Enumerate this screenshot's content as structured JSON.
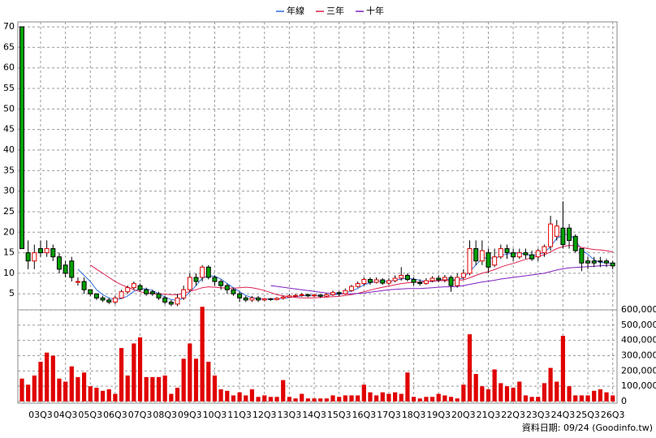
{
  "chart_data": {
    "type": "candlestick",
    "legend_position": "top",
    "date_note": "資料日期: 09/24 (Goodinfo.tw)",
    "categories": [
      null,
      null,
      null,
      "03Q3",
      null,
      null,
      null,
      "04Q3",
      null,
      null,
      null,
      "05Q3",
      null,
      null,
      null,
      "06Q3",
      null,
      null,
      null,
      "07Q3",
      null,
      null,
      null,
      "08Q3",
      null,
      null,
      null,
      "09Q3",
      null,
      null,
      null,
      "10Q3",
      null,
      null,
      null,
      "11Q3",
      null,
      null,
      null,
      "12Q3",
      null,
      null,
      null,
      "13Q3",
      null,
      null,
      null,
      "14Q3",
      null,
      null,
      null,
      "15Q3",
      null,
      null,
      null,
      "16Q3",
      null,
      null,
      null,
      "17Q3",
      null,
      null,
      null,
      "18Q3",
      null,
      null,
      null,
      "19Q3",
      null,
      null,
      null,
      "20Q3",
      null,
      null,
      null,
      "21Q3",
      null,
      null,
      null,
      "22Q3",
      null,
      null,
      null,
      "23Q3",
      null,
      null,
      null,
      "24Q3",
      null,
      null,
      null,
      "25Q3",
      null,
      null,
      null,
      "26Q3"
    ],
    "open": [
      70,
      15,
      13,
      16,
      15,
      16,
      14,
      12,
      13,
      8,
      8,
      6,
      5,
      4,
      3.5,
      3,
      4,
      5.5,
      6.5,
      7,
      6,
      5.5,
      5,
      4,
      3,
      2.5,
      4,
      6,
      9,
      9,
      11.5,
      9,
      8,
      7,
      6,
      5,
      4,
      3.5,
      4,
      3.5,
      3.8,
      3.6,
      3.9,
      4.2,
      4.5,
      4.6,
      4.8,
      4.5,
      4.7,
      4.4,
      4.8,
      5.3,
      5,
      5.8,
      6.8,
      7.5,
      8.5,
      7.8,
      8.4,
      7.6,
      8.2,
      8.8,
      9.5,
      8.5,
      7.8,
      7.5,
      8.2,
      8.8,
      8.4,
      9,
      7,
      9,
      10,
      16,
      13,
      15,
      12,
      14,
      16,
      15,
      14,
      15,
      14.5,
      14,
      15,
      16.5,
      19,
      21,
      21,
      19,
      16,
      13,
      13,
      13,
      13,
      12.5
    ],
    "high": [
      70,
      18,
      17,
      18,
      18,
      17,
      15,
      13,
      14,
      9,
      9,
      6,
      5,
      4.5,
      4,
      4.5,
      6,
      7,
      8,
      7.5,
      6.5,
      6,
      5.5,
      4.5,
      3.5,
      5,
      7,
      10,
      10,
      12,
      12,
      9.5,
      8.5,
      7.5,
      6.5,
      5.5,
      4.5,
      4.5,
      4.5,
      4,
      4,
      4.2,
      4.6,
      5,
      5,
      5.2,
      5,
      5,
      4.9,
      5.1,
      5.8,
      5.6,
      6.3,
      7.2,
      8,
      9,
      9,
      9,
      8.8,
      8.8,
      9.5,
      11.5,
      10,
      9,
      8.5,
      8.8,
      9.3,
      9.5,
      9.6,
      9.5,
      10,
      11,
      18,
      18,
      18,
      16,
      16,
      17,
      17,
      16,
      16,
      16,
      15.5,
      16,
      17,
      24,
      23,
      27.5,
      22,
      19.5,
      16,
      14,
      14,
      14,
      13.5,
      13
    ],
    "low": [
      16,
      11,
      11,
      14,
      14,
      13,
      10,
      9,
      8,
      7,
      5,
      4.5,
      3.5,
      3,
      2.5,
      2.5,
      4,
      5,
      6,
      5.5,
      4.5,
      4.5,
      3.5,
      2.5,
      2,
      2,
      3.5,
      5.5,
      7,
      8,
      8.5,
      7,
      6,
      5,
      4.5,
      3,
      3,
      3,
      3,
      3.2,
      3.3,
      3.4,
      3.6,
      4,
      4.2,
      4.3,
      4.2,
      4.2,
      4,
      4.2,
      4.5,
      4.4,
      4.8,
      5.5,
      6.5,
      7,
      7.2,
      7.5,
      7.2,
      7.2,
      7.8,
      8.2,
      8,
      7,
      7,
      7.2,
      7.8,
      7.8,
      7.8,
      5.5,
      6.5,
      8.5,
      9.5,
      12,
      12,
      10,
      11.5,
      13.5,
      13.5,
      13,
      13.5,
      13.5,
      13,
      13,
      14,
      15.5,
      18,
      16,
      16,
      15,
      10.5,
      11,
      11.5,
      11.5,
      11.5,
      11
    ],
    "close": [
      16,
      13,
      15,
      15,
      16,
      14,
      11,
      10,
      9,
      8,
      6,
      5,
      4,
      3.5,
      3,
      4,
      5.5,
      6.5,
      7.5,
      6,
      5,
      5,
      4,
      3,
      2.5,
      4,
      6,
      9,
      8,
      11.5,
      9,
      8,
      7,
      6,
      5,
      4,
      3.5,
      4,
      3.5,
      3.8,
      3.6,
      3.9,
      4.2,
      4.5,
      4.6,
      4.8,
      4.5,
      4.7,
      4.4,
      4.8,
      5.3,
      5,
      5.8,
      6.8,
      7.5,
      8.5,
      7.8,
      8.4,
      7.6,
      8.2,
      8.8,
      9.5,
      8.5,
      7.8,
      7.5,
      8.2,
      8.8,
      8.4,
      9,
      7,
      9,
      10,
      16,
      13,
      15.5,
      11.5,
      14,
      16,
      15,
      14,
      15,
      14.5,
      13.5,
      15.5,
      16.5,
      22,
      21.5,
      17,
      18,
      15.5,
      12.5,
      12.5,
      12.5,
      12.8,
      12.5,
      11.8
    ],
    "up_color": "#e00000",
    "down_color": "#00a000",
    "ylim": [
      1.1,
      71.2
    ],
    "yticks": [
      5,
      10,
      15,
      20,
      25,
      30,
      35,
      40,
      45,
      50,
      55,
      60,
      65,
      70
    ],
    "grid": true,
    "series": [
      {
        "name": "年線",
        "color": "#3070e0",
        "values": [
          null,
          null,
          null,
          null,
          null,
          null,
          null,
          null,
          null,
          11,
          9.5,
          8,
          6,
          4.8,
          4,
          3.6,
          3.8,
          4.5,
          5.6,
          6.3,
          6.2,
          5.8,
          5,
          4.2,
          3.6,
          3.4,
          4,
          5.4,
          7,
          8.8,
          9.4,
          9.3,
          8.6,
          7.5,
          6.5,
          5.5,
          4.6,
          4.1,
          3.8,
          3.7,
          3.7,
          3.7,
          3.9,
          4.1,
          4.3,
          4.5,
          4.6,
          4.6,
          4.6,
          4.6,
          4.8,
          4.9,
          5.2,
          5.7,
          6.3,
          7.2,
          7.7,
          8,
          8.1,
          8,
          8.3,
          8.6,
          8.8,
          8.6,
          8.3,
          8,
          8,
          8.2,
          8.6,
          8.4,
          8.4,
          8.9,
          10.5,
          12,
          13.6,
          13.9,
          13.5,
          14.3,
          14.7,
          14.8,
          15,
          14.6,
          14.3,
          14.6,
          15,
          16.5,
          18.5,
          19.3,
          19.6,
          18,
          15.8,
          14.6,
          13.3,
          12.6,
          12.6,
          12.4
        ]
      },
      {
        "name": "三年",
        "color": "#e02050",
        "values": [
          null,
          null,
          null,
          null,
          null,
          null,
          null,
          null,
          null,
          null,
          null,
          12,
          11,
          10,
          9,
          8,
          7.2,
          6.6,
          6,
          5.5,
          5.2,
          5,
          5,
          4.9,
          4.8,
          4.8,
          5,
          5.6,
          6,
          6.5,
          6.7,
          6.6,
          6.5,
          6.4,
          6.4,
          6.5,
          6.6,
          6.5,
          6.2,
          5.8,
          5.3,
          4.8,
          4.5,
          4.3,
          4.1,
          4,
          4,
          4,
          4.1,
          4.2,
          4.3,
          4.4,
          4.6,
          4.8,
          5.1,
          5.5,
          5.9,
          6.3,
          6.6,
          6.9,
          7.2,
          7.5,
          7.7,
          7.8,
          7.9,
          8,
          8.1,
          8.2,
          8.2,
          8.2,
          8.3,
          8.4,
          8.9,
          9.5,
          10,
          10.4,
          10.9,
          11.5,
          12,
          12.4,
          12.9,
          13.4,
          13.8,
          14.2,
          14.5,
          15.2,
          16,
          16.5,
          16.8,
          16.7,
          16.3,
          16,
          15.8,
          15.7,
          15.5,
          15.2
        ]
      },
      {
        "name": "十年",
        "color": "#8020c0",
        "values": [
          null,
          null,
          null,
          null,
          null,
          null,
          null,
          null,
          null,
          null,
          null,
          null,
          null,
          null,
          null,
          null,
          null,
          null,
          null,
          null,
          null,
          null,
          null,
          null,
          null,
          null,
          null,
          null,
          null,
          null,
          null,
          null,
          null,
          null,
          null,
          null,
          null,
          null,
          null,
          null,
          7,
          6.8,
          6.6,
          6.4,
          6.2,
          6,
          5.8,
          5.6,
          5.4,
          5.2,
          5.1,
          5,
          5,
          5,
          5.1,
          5.2,
          5.4,
          5.6,
          5.8,
          6,
          6.1,
          6.2,
          6.3,
          6.3,
          6.3,
          6.4,
          6.5,
          6.6,
          6.7,
          6.7,
          6.8,
          7,
          7.3,
          7.6,
          7.9,
          8.1,
          8.3,
          8.6,
          8.8,
          9,
          9.2,
          9.4,
          9.6,
          9.8,
          10,
          10.4,
          10.8,
          11.1,
          11.3,
          11.4,
          11.5,
          11.6,
          11.7,
          11.8,
          11.9,
          12
        ]
      }
    ],
    "volume": {
      "type": "bar",
      "color": "#e00000",
      "values": [
        150000,
        110000,
        170000,
        260000,
        320000,
        300000,
        150000,
        130000,
        230000,
        160000,
        190000,
        100000,
        90000,
        70000,
        80000,
        50000,
        350000,
        170000,
        380000,
        420000,
        160000,
        160000,
        160000,
        170000,
        50000,
        90000,
        280000,
        380000,
        280000,
        620000,
        260000,
        170000,
        80000,
        70000,
        40000,
        60000,
        40000,
        80000,
        30000,
        40000,
        30000,
        30000,
        140000,
        30000,
        20000,
        50000,
        20000,
        20000,
        20000,
        20000,
        40000,
        30000,
        40000,
        40000,
        40000,
        110000,
        60000,
        40000,
        60000,
        50000,
        60000,
        50000,
        190000,
        30000,
        20000,
        30000,
        30000,
        50000,
        40000,
        30000,
        20000,
        110000,
        440000,
        180000,
        100000,
        80000,
        210000,
        120000,
        100000,
        90000,
        130000,
        40000,
        30000,
        30000,
        120000,
        220000,
        130000,
        430000,
        100000,
        40000,
        40000,
        40000,
        70000,
        80000,
        60000,
        40000
      ],
      "ylim": [
        0,
        600000
      ],
      "yticks": [
        0,
        {
          "value": 100000,
          "label": "100,000"
        },
        {
          "value": 200000,
          "label": "200,000"
        },
        {
          "value": 300000,
          "label": "300,000"
        },
        {
          "value": 400000,
          "label": "400,000"
        },
        {
          "value": 500000,
          "label": "500,000"
        },
        {
          "value": 600000,
          "label": "600,000"
        }
      ]
    }
  }
}
